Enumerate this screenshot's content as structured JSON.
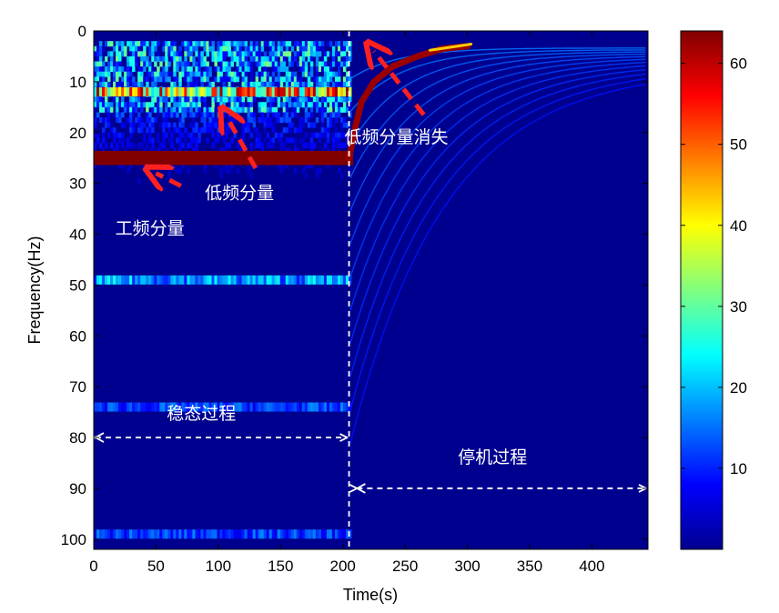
{
  "chart_data": {
    "type": "heatmap",
    "title": "",
    "xlabel": "Time(s)",
    "ylabel": "Frequency(Hz)",
    "xlim": [
      0,
      445
    ],
    "ylim": [
      0,
      102
    ],
    "y_reversed": true,
    "x_ticks": [
      0,
      50,
      100,
      150,
      200,
      250,
      300,
      350,
      400
    ],
    "y_ticks": [
      0,
      10,
      20,
      30,
      40,
      50,
      60,
      70,
      80,
      90,
      100
    ],
    "colorbar": {
      "min": 0,
      "max": 64,
      "ticks": [
        10,
        20,
        30,
        40,
        50,
        60
      ],
      "colormap": "jet"
    },
    "regions": [
      {
        "label": "稳态过程",
        "t_start": 0,
        "t_end": 205
      },
      {
        "label": "停机过程",
        "t_start": 210,
        "t_end": 445
      }
    ],
    "divider_time": 205,
    "steady_components": [
      {
        "freq_hz": 25,
        "t_start": 0,
        "t_end": 205,
        "intensity": 64
      },
      {
        "freq_hz": 12,
        "t_start": 0,
        "t_end": 205,
        "intensity": 45
      },
      {
        "freq_hz": 49,
        "t_start": 0,
        "t_end": 205,
        "intensity": 18
      },
      {
        "freq_hz": 74,
        "t_start": 0,
        "t_end": 205,
        "intensity": 12
      },
      {
        "freq_hz": 99,
        "t_start": 0,
        "t_end": 205,
        "intensity": 12
      }
    ],
    "shutdown_curve": {
      "label": "低频分量消失",
      "points": [
        [
          205,
          25
        ],
        [
          210,
          19
        ],
        [
          215,
          14
        ],
        [
          225,
          10
        ],
        [
          240,
          7
        ],
        [
          260,
          5
        ],
        [
          280,
          3.5
        ],
        [
          300,
          3
        ]
      ]
    },
    "annotations": [
      {
        "text": "工频分量",
        "x": 45,
        "y": 40
      },
      {
        "text": "低频分量",
        "x": 117,
        "y": 33
      },
      {
        "text": "低频分量消失",
        "x": 243,
        "y": 22
      }
    ],
    "arrows": [
      {
        "from": [
          70,
          30.5
        ],
        "to": [
          50,
          28
        ]
      },
      {
        "from": [
          130,
          27
        ],
        "to": [
          107,
          17
        ]
      },
      {
        "from": [
          265,
          16.5
        ],
        "to": [
          225,
          4
        ]
      }
    ]
  },
  "colors": {
    "background": "#00008f",
    "arrow": "#ff2020",
    "annotation_text": "#ffffff",
    "divider": "#ffffff"
  }
}
